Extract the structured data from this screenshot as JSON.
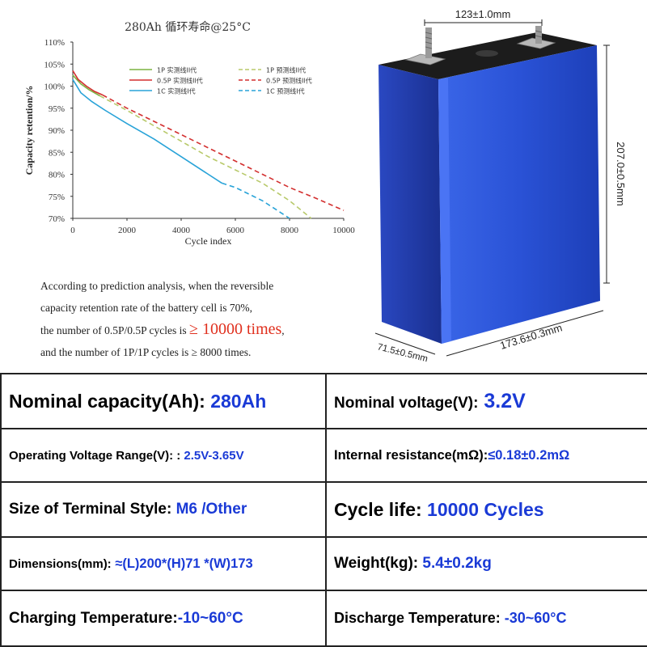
{
  "chart_data": {
    "type": "line",
    "title": "280Ah 循环寿命@25°C",
    "xlabel": "Cycle index",
    "ylabel": "Capacity retention/%",
    "xlim": [
      0,
      10000
    ],
    "ylim": [
      70,
      110
    ],
    "xticks": [
      0,
      2000,
      4000,
      6000,
      8000,
      10000
    ],
    "yticks": [
      "70%",
      "75%",
      "80%",
      "85%",
      "90%",
      "95%",
      "100%",
      "105%",
      "110%"
    ],
    "series": [
      {
        "name": "1P 实测线II代",
        "style": "solid",
        "color": "#7cb342",
        "x": [
          0,
          300,
          600,
          1000
        ],
        "y": [
          102.5,
          100.5,
          99.2,
          97.8
        ]
      },
      {
        "name": "0.5P 实测线II代",
        "style": "solid",
        "color": "#d32f2f",
        "x": [
          0,
          200,
          500,
          800,
          1100
        ],
        "y": [
          103.5,
          101.5,
          100.0,
          98.8,
          98.0
        ]
      },
      {
        "name": "1C 实测线I代",
        "style": "solid",
        "color": "#29a3d8",
        "x": [
          0,
          300,
          700,
          1200,
          2000,
          3000,
          4000,
          5000,
          5500
        ],
        "y": [
          101.5,
          98.5,
          96.5,
          94.5,
          91.5,
          88.0,
          84.0,
          80.0,
          78.0
        ]
      },
      {
        "name": "1P 预测线II代",
        "style": "dashed",
        "color": "#b8c96a",
        "x": [
          1000,
          2000,
          3000,
          4000,
          5000,
          6000,
          7000,
          8000,
          8800
        ],
        "y": [
          97.8,
          94.5,
          91.0,
          87.5,
          84.0,
          81.0,
          78.0,
          74.0,
          70.0
        ]
      },
      {
        "name": "0.5P 预测线II代",
        "style": "dashed",
        "color": "#d32f2f",
        "x": [
          1100,
          2000,
          3000,
          4000,
          5000,
          6000,
          7000,
          8000,
          9000,
          10000
        ],
        "y": [
          98.0,
          95.0,
          92.0,
          89.0,
          86.0,
          83.0,
          80.0,
          77.0,
          74.5,
          71.8
        ]
      },
      {
        "name": "1C 预测线I代",
        "style": "dashed",
        "color": "#29a3d8",
        "x": [
          5500,
          6000,
          6500,
          7000,
          7500,
          8000
        ],
        "y": [
          78.0,
          77.0,
          75.5,
          74.0,
          72.0,
          70.0
        ]
      }
    ]
  },
  "note": {
    "line1": "According to prediction analysis, when the reversible",
    "line2": "capacity retention rate of the battery cell is 70%,",
    "line3": "the number of 0.5P/0.5P cycles is",
    "line3_highlight": "≥ 10000 times",
    "line3_tail": ",",
    "line4": "and the number of 1P/1P cycles is ≥ 8000 times."
  },
  "battery": {
    "dim_width": "123±1.0mm",
    "dim_height": "207.0±0.5mm",
    "dim_depth": "71.5±0.5mm",
    "dim_length": "173.6±0.3mm",
    "body_color": "#2a4fd0",
    "top_color": "#1c1c1c"
  },
  "specs": {
    "nominal_capacity": {
      "label": "Nominal capacity(Ah):",
      "value": " 280Ah"
    },
    "nominal_voltage": {
      "label": "Nominal voltage(V):",
      "value": " 3.2V"
    },
    "voltage_range": {
      "label": "Operating Voltage Range(V): :",
      "value": " 2.5V-3.65V"
    },
    "internal_resistance": {
      "label": "Internal resistance(mΩ):",
      "value": "≤0.18±0.2mΩ"
    },
    "terminal_style": {
      "label": "Size of Terminal Style:",
      "value": " M6 /Other"
    },
    "cycle_life": {
      "label": "Cycle life:",
      "value": " 10000 Cycles"
    },
    "dimensions": {
      "label": "Dimensions(mm):",
      "value": " ≈(L)200*(H)71 *(W)173"
    },
    "weight": {
      "label": "Weight(kg):",
      "value": " 5.4±0.2kg"
    },
    "charging_temp": {
      "label": "Charging Temperature:",
      "value": "-10~60°C"
    },
    "discharge_temp": {
      "label": "Discharge Temperature:",
      "value": " -30~60°C"
    }
  }
}
